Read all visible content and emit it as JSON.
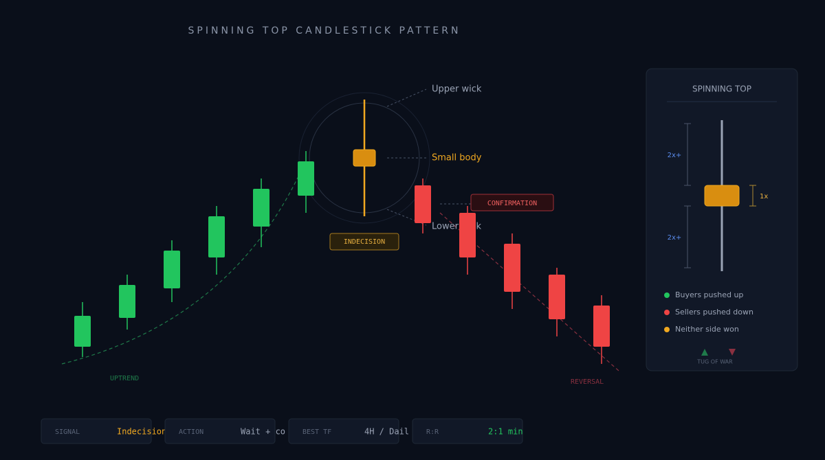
{
  "header": {
    "title": "SPINNING TOP CANDLESTICK PATTERN"
  },
  "annotations": {
    "upper_wick": "Upper wick",
    "small_body": "Small body",
    "lower_wick": "Lower wick",
    "indecision": "INDECISION",
    "confirmation": "CONFIRMATION",
    "uptrend": "UPTREND",
    "reversal": "REVERSAL"
  },
  "panel": {
    "title": "SPINNING TOP",
    "upper_ratio": "2x+",
    "body_ratio": "1x",
    "lower_ratio": "2x+",
    "legend": [
      "Buyers pushed up",
      "Sellers pushed down",
      "Neither side won"
    ],
    "footer": "TUG OF WAR"
  },
  "cards": [
    {
      "label": "SIGNAL",
      "value": "Indecision"
    },
    {
      "label": "ACTION",
      "value": "Wait + co"
    },
    {
      "label": "BEST TF",
      "value": "4H / Dail"
    },
    {
      "label": "R:R",
      "value": "2:1 min"
    }
  ]
}
